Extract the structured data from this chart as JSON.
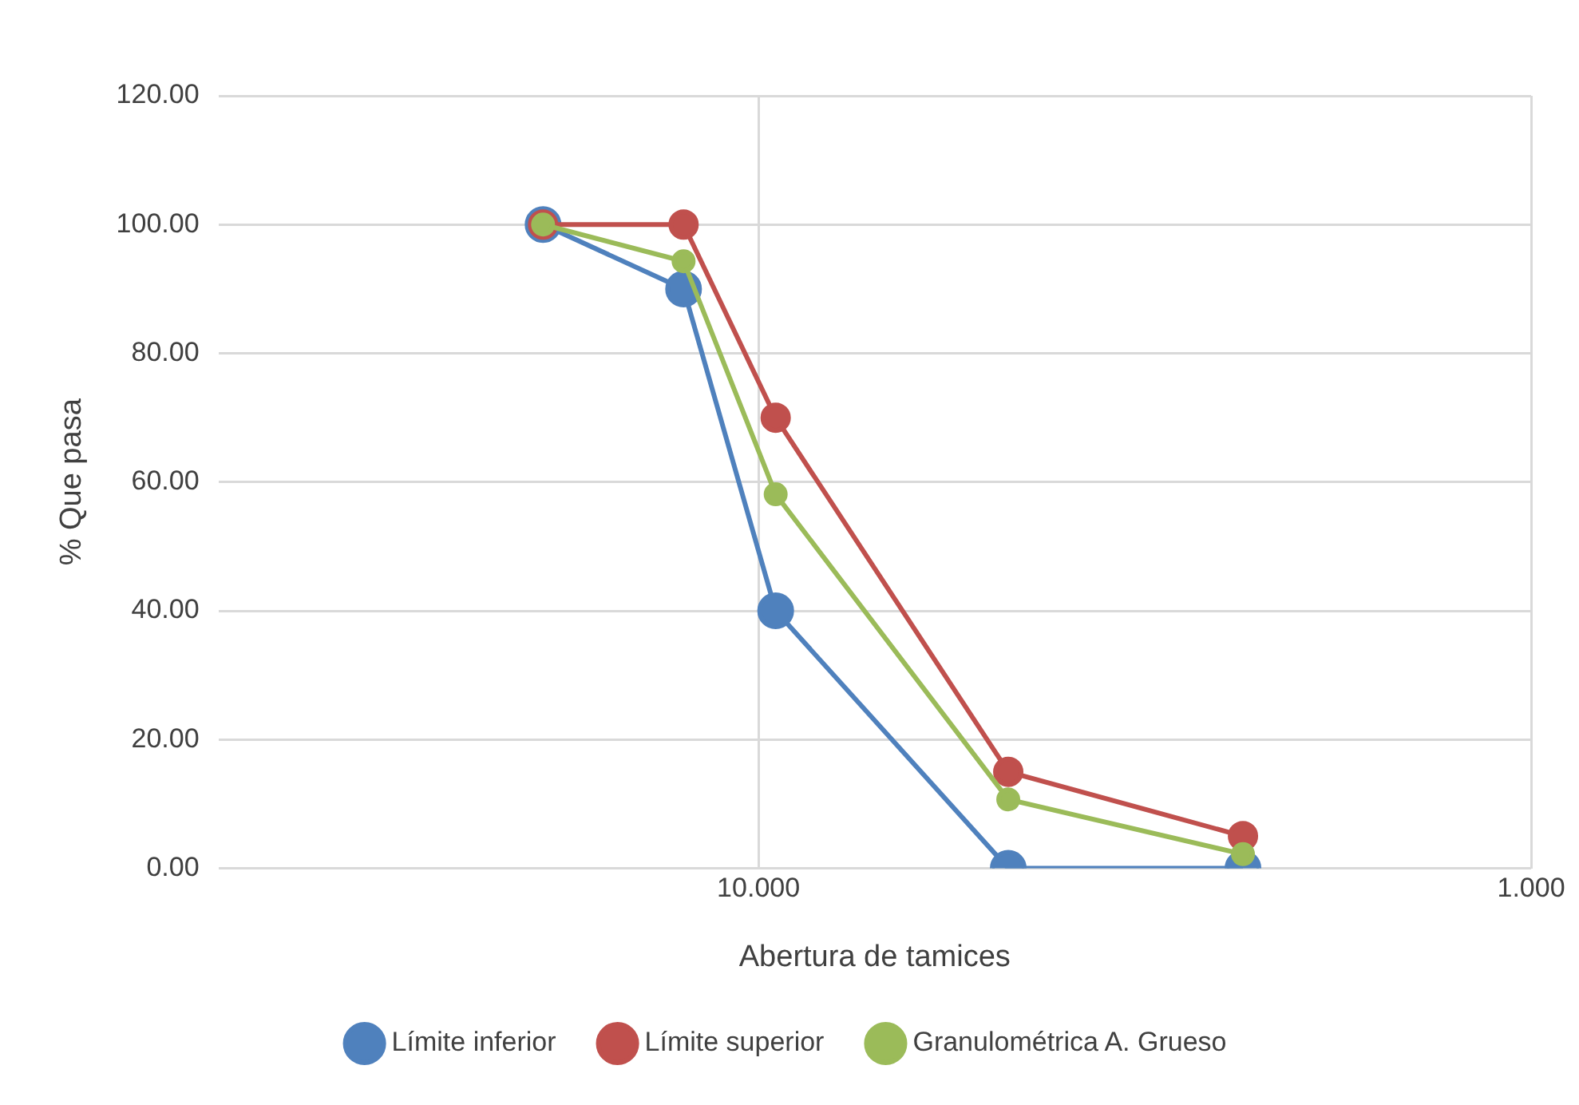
{
  "chart_data": {
    "type": "line",
    "xlabel": "Abertura de tamices",
    "ylabel": "% Que pasa",
    "x": [
      19,
      12.5,
      9.5,
      4.75,
      2.36
    ],
    "series": [
      {
        "name": "Límite inferior",
        "color": "#4f81bd",
        "values": [
          100,
          90,
          40,
          0,
          0
        ]
      },
      {
        "name": "Límite superior",
        "color": "#c0504d",
        "values": [
          100,
          100,
          70,
          15,
          5
        ]
      },
      {
        "name": "Granulométrica A. Grueso",
        "color": "#9bbb59",
        "values": [
          100,
          94.3,
          58.1,
          10.7,
          2.2
        ]
      }
    ],
    "log": "x",
    "xlim": [
      50,
      1
    ],
    "xticks": [
      {
        "value": 10,
        "label": "10.000"
      },
      {
        "value": 1,
        "label": "1.000"
      }
    ],
    "ylim": [
      0,
      120
    ],
    "yticks": [
      {
        "value": 0,
        "label": "0.00"
      },
      {
        "value": 20,
        "label": "20.00"
      },
      {
        "value": 40,
        "label": "40.00"
      },
      {
        "value": 60,
        "label": "60.00"
      },
      {
        "value": 80,
        "label": "80.00"
      },
      {
        "value": 100,
        "label": "100.00"
      },
      {
        "value": 120,
        "label": "120.00"
      }
    ],
    "grid": true,
    "legend": "bottom",
    "marker": "circle",
    "line_style": "solid"
  }
}
